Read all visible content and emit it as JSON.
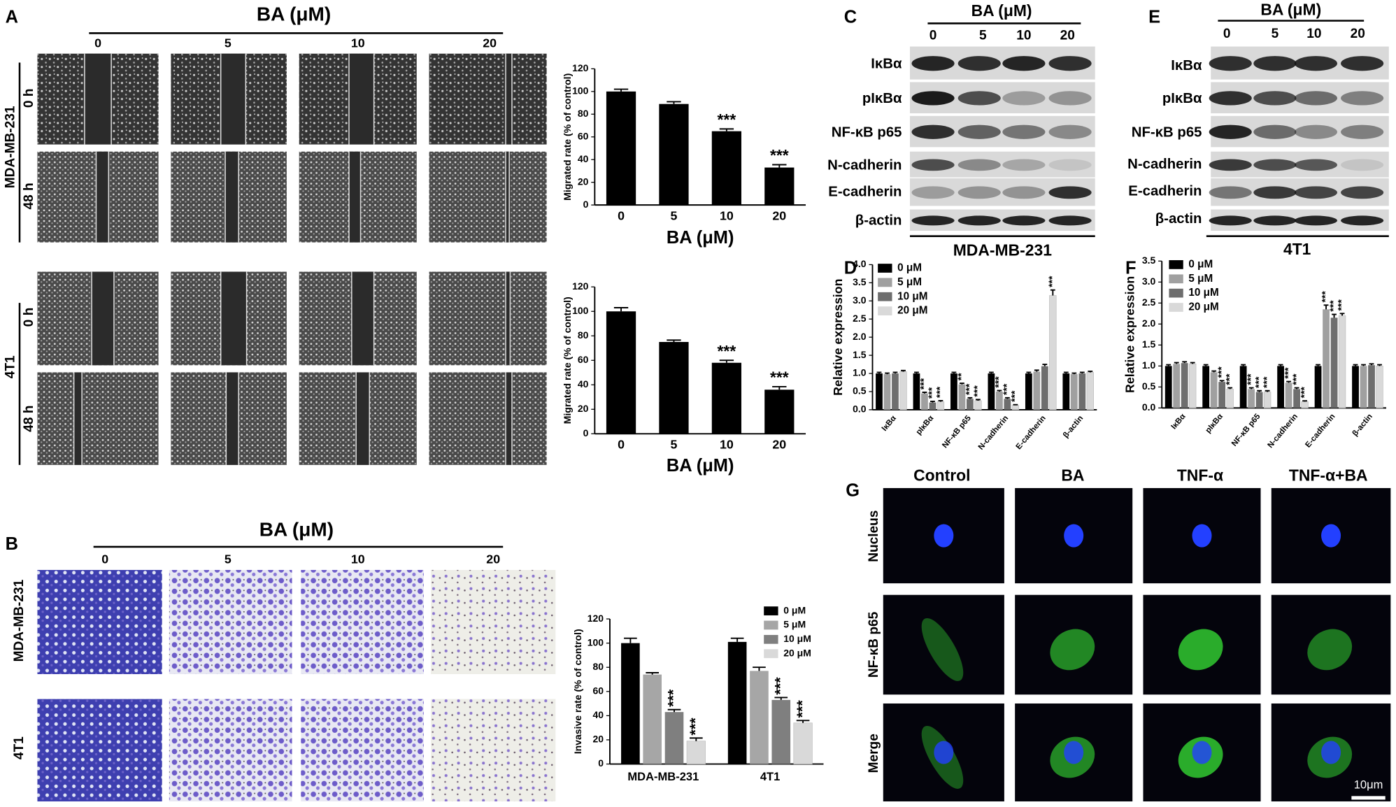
{
  "figure": {
    "A": {
      "letter": "A",
      "header": "BA (μM)",
      "doses": [
        "0",
        "5",
        "10",
        "20"
      ],
      "rows": [
        {
          "cell_line": "MDA-MB-231",
          "times": [
            "0 h",
            "48 h"
          ]
        },
        {
          "cell_line": "4T1",
          "times": [
            "0 h",
            "48 h"
          ]
        }
      ]
    },
    "B": {
      "letter": "B",
      "header": "BA (μM)",
      "doses": [
        "0",
        "5",
        "10",
        "20"
      ],
      "rows": [
        "MDA-MB-231",
        "4T1"
      ]
    },
    "C": {
      "letter": "C",
      "header": "BA (μM)",
      "doses": [
        "0",
        "5",
        "10",
        "20"
      ],
      "proteins": [
        "IκBα",
        "pIκBα",
        "NF-κB p65",
        "N-cadherin",
        "E-cadherin",
        "β-actin"
      ],
      "cell_line": "MDA-MB-231"
    },
    "D": {
      "letter": "D"
    },
    "E": {
      "letter": "E",
      "header": "BA (μM)",
      "doses": [
        "0",
        "5",
        "10",
        "20"
      ],
      "proteins": [
        "IκBα",
        "pIκBα",
        "NF-κB p65",
        "N-cadherin",
        "E-cadherin",
        "β-actin"
      ],
      "cell_line": "4T1"
    },
    "F": {
      "letter": "F"
    },
    "G": {
      "letter": "G",
      "columns": [
        "Control",
        "BA",
        "TNF-α",
        "TNF-α+BA"
      ],
      "rows": [
        "Nucleus",
        "NF-κB p65",
        "Merge"
      ],
      "scale_bar": "10μm"
    }
  },
  "chart_data": [
    {
      "type": "bar",
      "categories": [
        "0",
        "5",
        "10",
        "20"
      ],
      "values": [
        100,
        89,
        65,
        33
      ],
      "errors": [
        2,
        2,
        2,
        2.5
      ],
      "significance": [
        null,
        null,
        "***",
        "***"
      ],
      "color": "#000000",
      "xlabel": "BA (μM)",
      "ylabel": "Migrated rate (% of control)",
      "ylim": [
        0,
        120
      ],
      "yticks": [
        0,
        20,
        40,
        60,
        80,
        100,
        120
      ]
    },
    {
      "type": "bar",
      "categories": [
        "0",
        "5",
        "10",
        "20"
      ],
      "values": [
        100,
        75,
        58,
        36
      ],
      "errors": [
        3,
        1.5,
        2,
        2.5
      ],
      "significance": [
        null,
        null,
        "***",
        "***"
      ],
      "color": "#000000",
      "xlabel": "BA (μM)",
      "ylabel": "Migrated rate (% of control)",
      "ylim": [
        0,
        120
      ],
      "yticks": [
        0,
        20,
        40,
        60,
        80,
        100,
        120
      ]
    },
    {
      "type": "bar",
      "categories": [
        "MDA-MB-231",
        "4T1"
      ],
      "ylabel": "Invasive rate (% of control)",
      "ylim": [
        0,
        120
      ],
      "yticks": [
        0,
        20,
        40,
        60,
        80,
        100,
        120
      ],
      "legend": "upper right",
      "series": [
        {
          "name": "0 μM",
          "color": "#000000",
          "values": [
            100,
            101
          ],
          "errors": [
            4,
            3
          ],
          "significance": [
            null,
            null
          ]
        },
        {
          "name": "5 μM",
          "color": "#a6a6a6",
          "values": [
            74,
            77
          ],
          "errors": [
            1.5,
            3
          ],
          "significance": [
            null,
            null
          ]
        },
        {
          "name": "10 μM",
          "color": "#7f7f7f",
          "values": [
            43,
            53
          ],
          "errors": [
            2,
            2
          ],
          "significance": [
            "***",
            "***"
          ]
        },
        {
          "name": "20 μM",
          "color": "#d9d9d9",
          "values": [
            19,
            34
          ],
          "errors": [
            2.5,
            2
          ],
          "significance": [
            "***",
            "***"
          ]
        }
      ]
    },
    {
      "type": "bar",
      "categories": [
        "IκBα",
        "pIκBα",
        "NF-κB p65",
        "N-cadherin",
        "E-cadherin",
        "β-actin"
      ],
      "ylabel": "Relative expression",
      "ylim": [
        0,
        4
      ],
      "yticks": [
        {
          "value": 0,
          "label": "0.0"
        },
        0.5,
        {
          "value": 1,
          "label": "1.0"
        },
        1.5,
        {
          "value": 2,
          "label": "2.0"
        },
        2.5,
        {
          "value": 3,
          "label": "3.0"
        },
        3.5,
        {
          "value": 4,
          "label": "4.0"
        }
      ],
      "legend": "upper left",
      "series": [
        {
          "name": "0 μM",
          "color": "#000000",
          "values": [
            1,
            1,
            1,
            1,
            1,
            1
          ],
          "errors": [
            0.03,
            0.03,
            0.03,
            0.03,
            0.03,
            0.03
          ],
          "significance": [
            null,
            null,
            null,
            null,
            null,
            null
          ]
        },
        {
          "name": "5 μM",
          "color": "#a0a0a0",
          "values": [
            0.98,
            0.45,
            0.7,
            0.5,
            1.05,
            0.98
          ],
          "errors": [
            0.03,
            0.03,
            0.03,
            0.03,
            0.04,
            0.03
          ],
          "significance": [
            null,
            "***",
            "**",
            "***",
            null,
            null
          ]
        },
        {
          "name": "10 μM",
          "color": "#6e6e6e",
          "values": [
            1,
            0.2,
            0.3,
            0.3,
            1.2,
            1
          ],
          "errors": [
            0.03,
            0.03,
            0.03,
            0.03,
            0.05,
            0.03
          ],
          "significance": [
            null,
            "***",
            "***",
            "***",
            null,
            null
          ]
        },
        {
          "name": "20 μM",
          "color": "#d9d9d9",
          "values": [
            1.05,
            0.22,
            0.25,
            0.12,
            3.15,
            1.03
          ],
          "errors": [
            0.03,
            0.03,
            0.03,
            0.02,
            0.15,
            0.03
          ],
          "significance": [
            null,
            "***",
            "***",
            "***",
            "***",
            null
          ]
        }
      ]
    },
    {
      "type": "bar",
      "categories": [
        "IκBα",
        "pIκBα",
        "NF-κB p65",
        "N-cadherin",
        "E-cadherin",
        "β-actin"
      ],
      "ylabel": "Relative expression",
      "ylim": [
        0,
        3.5
      ],
      "yticks": [
        {
          "value": 0,
          "label": "0.0"
        },
        0.5,
        {
          "value": 1,
          "label": "1.0"
        },
        1.5,
        {
          "value": 2,
          "label": "2.0"
        },
        2.5,
        {
          "value": 3,
          "label": "3.0"
        },
        3.5
      ],
      "legend": "upper left",
      "series": [
        {
          "name": "0 μM",
          "color": "#000000",
          "values": [
            1,
            1,
            1,
            1,
            1,
            1
          ],
          "errors": [
            0.03,
            0.03,
            0.03,
            0.03,
            0.03,
            0.03
          ],
          "significance": [
            null,
            null,
            null,
            null,
            null,
            null
          ]
        },
        {
          "name": "5 μM",
          "color": "#a0a0a0",
          "values": [
            1.05,
            0.85,
            0.45,
            0.6,
            2.35,
            1
          ],
          "errors": [
            0.03,
            0.03,
            0.03,
            0.03,
            0.1,
            0.03
          ],
          "significance": [
            null,
            null,
            "***",
            "***",
            "***",
            null
          ]
        },
        {
          "name": "10 μM",
          "color": "#6e6e6e",
          "values": [
            1.07,
            0.62,
            0.38,
            0.45,
            2.15,
            1.02
          ],
          "errors": [
            0.03,
            0.03,
            0.03,
            0.03,
            0.08,
            0.03
          ],
          "significance": [
            null,
            "***",
            "***",
            "***",
            "***",
            null
          ]
        },
        {
          "name": "20 μM",
          "color": "#d9d9d9",
          "values": [
            1.05,
            0.45,
            0.38,
            0.15,
            2.2,
            1
          ],
          "errors": [
            0.03,
            0.03,
            0.03,
            0.02,
            0.05,
            0.03
          ],
          "significance": [
            null,
            "***",
            "***",
            "***",
            "***",
            null
          ]
        }
      ]
    }
  ]
}
